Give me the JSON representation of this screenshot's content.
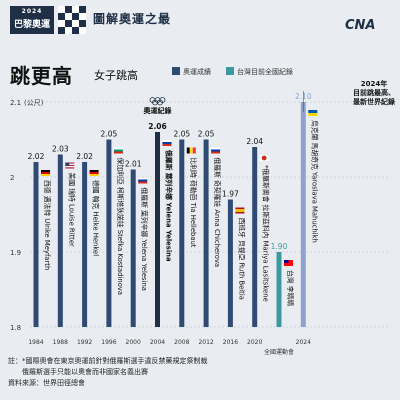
{
  "header": {
    "logo_year": "2024",
    "logo_text": "巴黎奧運",
    "title": "圖解奧運之最",
    "publisher": "CNA"
  },
  "chart_title": "跳更高",
  "chart_subtitle": "女子跳高",
  "legend": {
    "olympic_record": "奧運成績",
    "taiwan_record": "台灣目前全國紀錄"
  },
  "callout": {
    "line1": "2024年",
    "line2": "目前跳最高、",
    "line3": "最新世界紀錄"
  },
  "olympic_record_label": "奧運紀錄",
  "colors": {
    "olympic": "#2f4a73",
    "olympic_highlight": "#1f2f45",
    "taiwan": "#3a9a9f",
    "record_2024": "#8ea3cc",
    "background": "#e9edf1"
  },
  "chart_data": {
    "type": "bar",
    "ylabel": "(公尺)",
    "ylim": [
      1.8,
      2.1
    ],
    "yticks": [
      "2.1",
      "2",
      "1.9",
      "1.8"
    ],
    "categories": [
      "1984",
      "1988",
      "1992",
      "1996",
      "2000",
      "2004",
      "2008",
      "2012",
      "2016",
      "2020",
      "",
      "2024"
    ],
    "category_subtitles": [
      "",
      "",
      "",
      "",
      "",
      "",
      "",
      "",
      "",
      "",
      "全國運動會",
      ""
    ],
    "values": [
      2.02,
      2.03,
      2.02,
      2.05,
      2.01,
      2.06,
      2.05,
      2.05,
      1.97,
      2.04,
      1.9,
      2.1
    ],
    "value_labels": [
      "2.02",
      "2.03",
      "2.02",
      "2.05",
      "2.01",
      "2.06",
      "2.05",
      "2.05",
      "1.97",
      "2.04",
      "1.90",
      "2.10"
    ],
    "athletes": [
      "西德 邁法特 Ulrike Meyfarth",
      "美國 瑞特 Louise Ritter",
      "德國 翰克 Heike Henkel",
      "保加利亞 柯斯塔狄諾娃 Stefka Kostadinova",
      "俄羅斯 葉列辛娜 Yelena Yelesina",
      "俄羅斯 葉列辛娜 Yelena Yelesina",
      "比利時 荷勒芭 Tia Hellebaut",
      "俄羅斯 奇契羅娃 Anna Chicherova",
      "西班牙 貝提亞 Ruth Beitia",
      "*俄羅斯奧會 拉斯茲科內 Mariya Lasitskene",
      "台灣 李晴晴",
      "烏克蘭 馬胡奇克 Yaroslava Mahuchikh"
    ],
    "flags": [
      "west-germany",
      "usa",
      "germany",
      "bulgaria",
      "russia",
      "russia",
      "belgium",
      "russia",
      "spain",
      "roc",
      "taiwan",
      "ukraine"
    ],
    "series_kind": [
      "olympic",
      "olympic",
      "olympic",
      "olympic",
      "olympic",
      "olympic_record",
      "olympic",
      "olympic",
      "olympic",
      "olympic",
      "taiwan",
      "world_record"
    ]
  },
  "notes": {
    "line1": "註：*國際奧會在東京奧運前針對俄羅斯選手違反禁藥規定祭制裁",
    "line2": "　　俄羅斯選手只能以奧會而非國家名義出賽",
    "line3": "資料來源：世界田徑總會"
  }
}
